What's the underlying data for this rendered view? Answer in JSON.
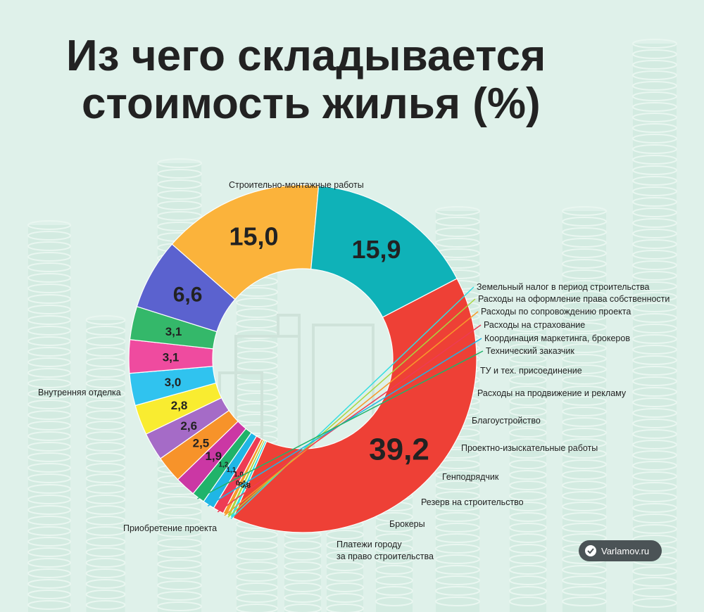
{
  "title_lines": [
    "Из чего складывается",
    "стоимость жилья (%)"
  ],
  "badge_text": "Varlamov.ru",
  "chart_data": {
    "type": "pie",
    "title": "Из чего складывается стоимость жилья (%)",
    "unit": "%",
    "donut": true,
    "slices": [
      {
        "label": "Строительно-монтажные работы",
        "value": 39.2,
        "value_text": "39,2",
        "color": "#ee4036"
      },
      {
        "label": "Земельный налог в период строительства",
        "value": 0.3,
        "value_text": "0,3",
        "color": "#33dde0"
      },
      {
        "label": "Расходы на оформление права собственности",
        "value": 0.3,
        "value_text": "0,3",
        "color": "#a9d640"
      },
      {
        "label": "Расходы по сопровождению проекта",
        "value": 0.4,
        "value_text": "0,4",
        "color": "#f79a2b"
      },
      {
        "label": "Расходы на страхование",
        "value": 1.0,
        "value_text": "1,0",
        "color": "#ee3b54"
      },
      {
        "label": "Координация маркетинга, брокеров",
        "value": 1.1,
        "value_text": "1,1",
        "color": "#1fb6e5"
      },
      {
        "label": "Технический заказчик",
        "value": 1.2,
        "value_text": "1,2",
        "color": "#20b36a"
      },
      {
        "label": "ТУ и тех. присоединение",
        "value": 1.9,
        "value_text": "1,9",
        "color": "#cb37a4"
      },
      {
        "label": "Расходы на продвижение и рекламу",
        "value": 2.5,
        "value_text": "2,5",
        "color": "#f7932a"
      },
      {
        "label": "Благоустройство",
        "value": 2.6,
        "value_text": "2,6",
        "color": "#a56bc7"
      },
      {
        "label": "Проектно-изыскательные работы",
        "value": 2.8,
        "value_text": "2,8",
        "color": "#f9ec30"
      },
      {
        "label": "Генподрядчик",
        "value": 3.0,
        "value_text": "3,0",
        "color": "#30c3ef"
      },
      {
        "label": "Резерв на строительство",
        "value": 3.1,
        "value_text": "3,1",
        "color": "#ef4b9f"
      },
      {
        "label": "Брокеры",
        "value": 3.1,
        "value_text": "3,1",
        "color": "#34b86a"
      },
      {
        "label": "Платежи городу за право строительства",
        "label_lines": [
          "Платежи городу",
          "за право строительства"
        ],
        "value": 6.6,
        "value_text": "6,6",
        "color": "#5b62cf"
      },
      {
        "label": "Приобретение проекта",
        "value": 15.0,
        "value_text": "15,0",
        "color": "#fbb33b"
      },
      {
        "label": "Внутренняя отделка",
        "value": 15.9,
        "value_text": "15,9",
        "color": "#0fb2b8"
      }
    ]
  }
}
